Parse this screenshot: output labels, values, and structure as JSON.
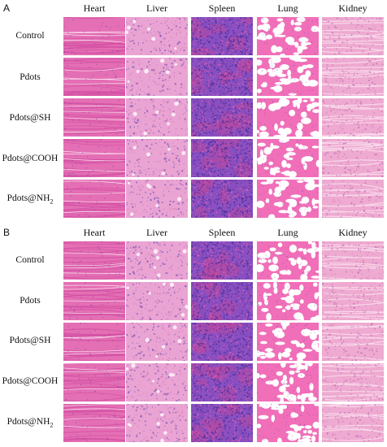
{
  "figure": {
    "panels": [
      {
        "letter": "A",
        "columns": [
          "Heart",
          "Liver",
          "Spleen",
          "Lung",
          "Kidney"
        ],
        "rows": [
          {
            "label": "Control"
          },
          {
            "label": "Pdots"
          },
          {
            "label": "Pdots@SH"
          },
          {
            "label": "Pdots@COOH"
          },
          {
            "label_main": "Pdots@NH",
            "label_sub": "2"
          }
        ]
      },
      {
        "letter": "B",
        "columns": [
          "Heart",
          "Liver",
          "Spleen",
          "Lung",
          "Kidney"
        ],
        "rows": [
          {
            "label": "Control"
          },
          {
            "label": "Pdots"
          },
          {
            "label": "Pdots@SH"
          },
          {
            "label": "Pdots@COOH"
          },
          {
            "label_main": "Pdots@NH",
            "label_sub": "2"
          }
        ]
      }
    ],
    "stain_colors": {
      "heart": "#e46fb4",
      "liver": "#eaa4d3",
      "spleen": "#8a4fc0",
      "lung": "#ffffff",
      "kidney": "#eeaad0",
      "nucleus": "#5a3ea8",
      "fiber": "#d34ea3"
    }
  }
}
